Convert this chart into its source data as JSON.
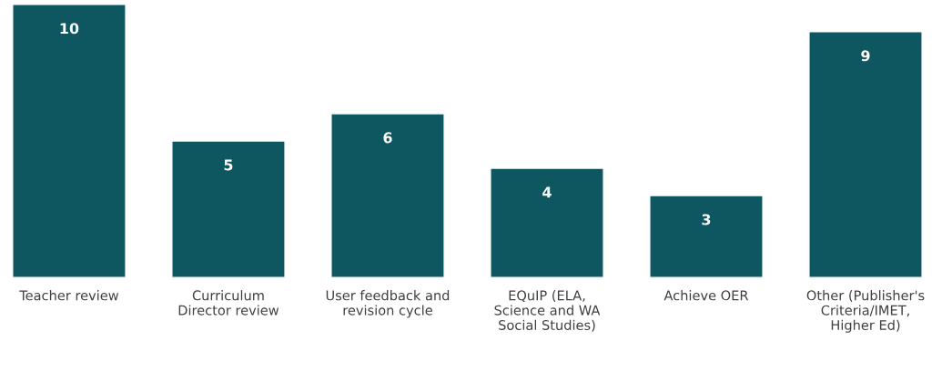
{
  "chart_data": {
    "type": "bar",
    "categories": [
      "Teacher review",
      "Curriculum\nDirector review",
      "User feedback and\nrevision cycle",
      "EQuIP (ELA,\nScience and WA\nSocial Studies)",
      "Achieve OER",
      "Other (Publisher's\nCriteria/IMET,\nHigher Ed)"
    ],
    "values": [
      10,
      5,
      6,
      4,
      3,
      9
    ],
    "color": "#0e5660",
    "data_labels": true,
    "grid": false
  }
}
